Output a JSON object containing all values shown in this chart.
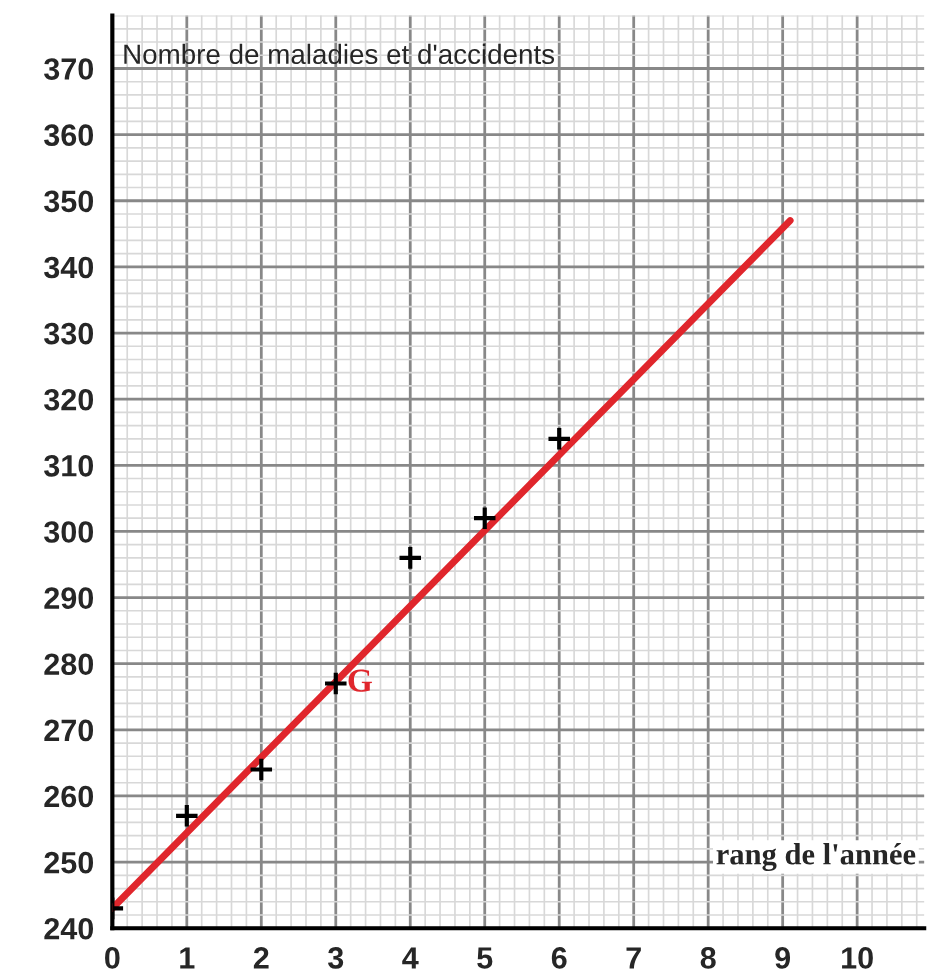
{
  "chart_data": {
    "type": "scatter",
    "xlabel": "rang de l'année",
    "ylabel": "Nombre de maladies et d'accidents",
    "x": [
      0,
      1,
      2,
      3,
      4,
      5,
      6
    ],
    "series": [
      {
        "type": "scatter",
        "color": "#000000",
        "marker": "cross",
        "values": [
          243,
          257,
          264,
          277,
          296,
          302,
          314
        ]
      },
      {
        "type": "line",
        "color": "#e0262c",
        "x": [
          0,
          9.1
        ],
        "values": [
          243,
          347
        ],
        "line_style": "solid"
      }
    ],
    "annotations": [
      {
        "text": "G",
        "x": 3,
        "y": 277
      }
    ],
    "xlim": [
      0,
      10.9
    ],
    "ylim": [
      240,
      378
    ],
    "xticks": [
      0,
      1,
      2,
      3,
      4,
      5,
      6,
      7,
      8,
      9,
      10
    ],
    "yticks": [
      240,
      250,
      260,
      270,
      280,
      290,
      300,
      310,
      320,
      330,
      340,
      350,
      360,
      370
    ],
    "grid": true,
    "legend": false
  }
}
